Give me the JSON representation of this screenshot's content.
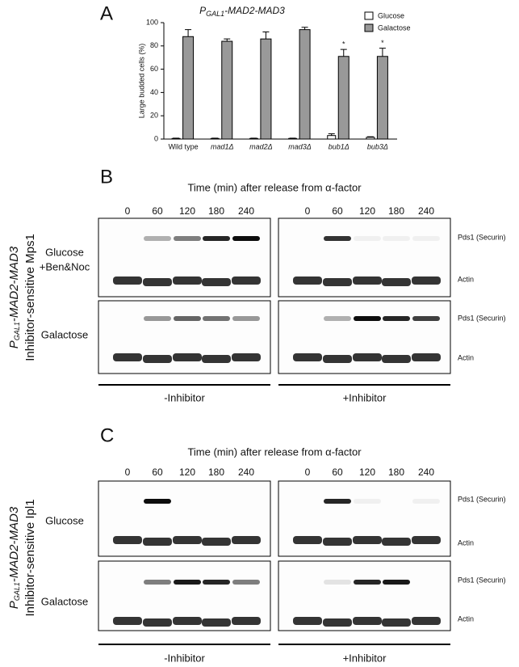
{
  "chart_data": {
    "type": "bar",
    "panel_label": "A",
    "title": "P",
    "title_subscript": "GAL1",
    "title_rest": "-MAD2-MAD3",
    "y_label": "Large budded cells (%)",
    "categories": [
      "Wild type",
      "mad1Δ",
      "mad2Δ",
      "mad3Δ",
      "bub1Δ",
      "bub3Δ"
    ],
    "series": [
      {
        "name": "Glucose",
        "color": "#ffffff",
        "values": [
          0.5,
          0.5,
          0.5,
          0.5,
          3,
          1.5
        ],
        "errors": [
          0.3,
          0.3,
          0.3,
          0.3,
          1.5,
          0.5
        ]
      },
      {
        "name": "Galactose",
        "color": "#999999",
        "values": [
          88,
          84,
          86,
          94,
          71,
          71
        ],
        "errors": [
          6,
          2,
          6,
          2,
          6,
          7
        ],
        "value_annotations": [
          null,
          null,
          null,
          null,
          "*",
          "*"
        ]
      }
    ],
    "ylim": [
      0,
      100
    ],
    "yticks": [
      0,
      20,
      40,
      60,
      80,
      100
    ],
    "legend": "top-right"
  },
  "blot_panels": [
    {
      "label": "B",
      "header": "Time (min) after release from α-factor",
      "lanes": [
        "0",
        "60",
        "120",
        "180",
        "240"
      ],
      "side_main": "P",
      "side_sub": "GAL1",
      "side_rest": "-MAD2-MAD3",
      "side_second": "Inhibitor-sensitive Mps1",
      "rows": [
        {
          "condition": [
            "Glucose",
            "+Ben&Noc"
          ],
          "bands": [
            "Pds1 (Securin)",
            "Actin"
          ]
        },
        {
          "condition": [
            "Galactose"
          ],
          "bands": [
            "Pds1 (Securin)",
            "Actin"
          ]
        }
      ],
      "treatments": [
        "-Inhibitor",
        "+Inhibitor"
      ]
    },
    {
      "label": "C",
      "header": "Time (min) after release from α-factor",
      "lanes": [
        "0",
        "60",
        "120",
        "180",
        "240"
      ],
      "side_main": "P",
      "side_sub": "GAL1",
      "side_rest": "-MAD2-MAD3",
      "side_second": "Inhibitor-sensitive Ipl1",
      "rows": [
        {
          "condition": [
            "Glucose"
          ],
          "bands": [
            "Pds1 (Securin)",
            "Actin"
          ]
        },
        {
          "condition": [
            "Galactose"
          ],
          "bands": [
            "Pds1 (Securin)",
            "Actin"
          ]
        }
      ],
      "treatments": [
        "-Inhibitor",
        "+Inhibitor"
      ]
    }
  ]
}
